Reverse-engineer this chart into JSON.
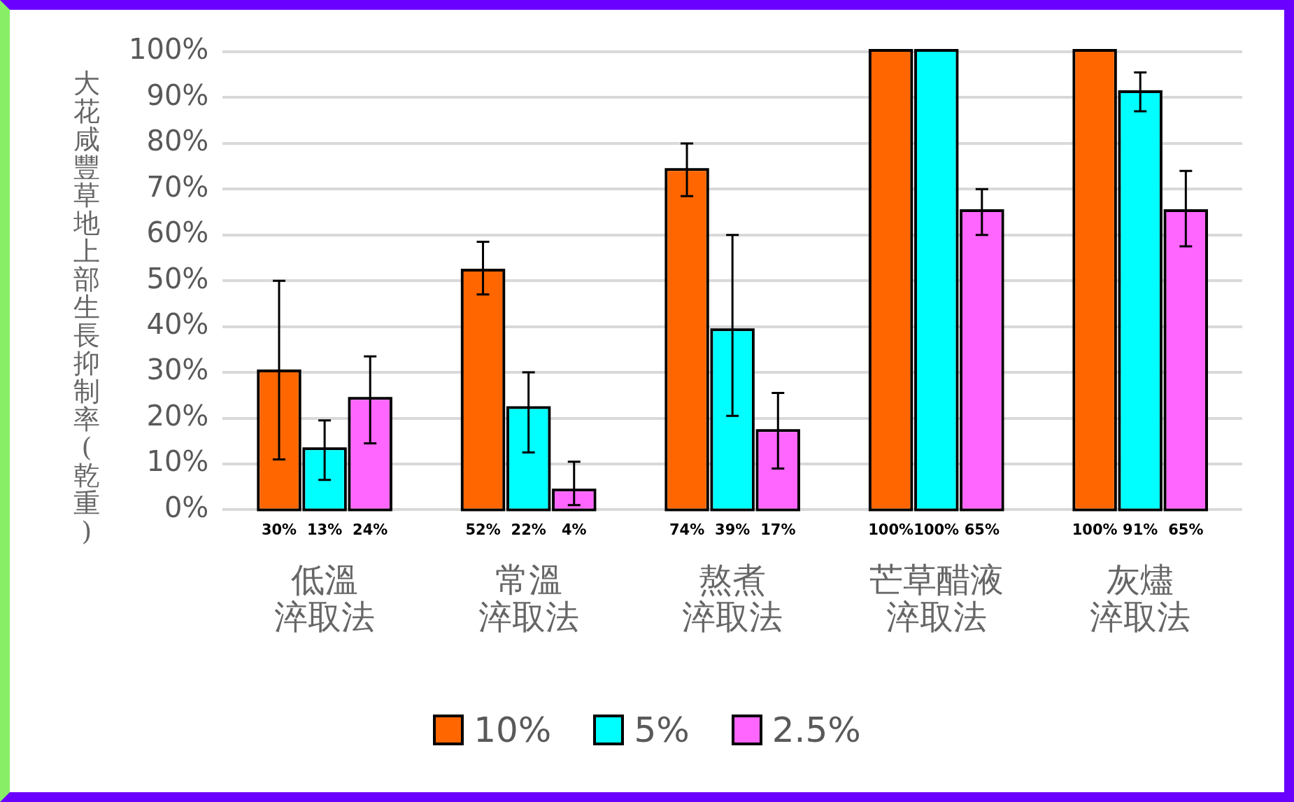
{
  "chart_data": {
    "type": "bar",
    "ylabel": "大花咸豐草地上部生長抑制率(乾重)",
    "categories": [
      "低溫淬取法",
      "常溫淬取法",
      "熬煮淬取法",
      "芒草醋液淬取法",
      "灰燼淬取法"
    ],
    "series": [
      {
        "name": "10%",
        "color": "#ff6600",
        "values": [
          30,
          52,
          74,
          100,
          100
        ],
        "errors": [
          [
            11,
            50
          ],
          [
            47,
            58.5
          ],
          [
            68.5,
            80
          ],
          null,
          null
        ],
        "value_labels": [
          "30%",
          "52%",
          "74%",
          "100%",
          "100%"
        ]
      },
      {
        "name": "5%",
        "color": "#00ffff",
        "values": [
          13,
          22,
          39,
          100,
          91
        ],
        "errors": [
          [
            6.5,
            19.5
          ],
          [
            12.5,
            30
          ],
          [
            20.5,
            60
          ],
          null,
          [
            87,
            95.5
          ]
        ],
        "value_labels": [
          "13%",
          "22%",
          "39%",
          "100%",
          "91%"
        ]
      },
      {
        "name": "2.5%",
        "color": "#ff66ff",
        "values": [
          24,
          4,
          17,
          65,
          65
        ],
        "errors": [
          [
            14.5,
            33.5
          ],
          [
            1,
            10.5
          ],
          [
            9,
            25.5
          ],
          [
            60,
            70
          ],
          [
            57.5,
            74
          ]
        ],
        "value_labels": [
          "24%",
          "4%",
          "17%",
          "65%",
          "65%"
        ]
      }
    ],
    "ylim": [
      0,
      100
    ],
    "yticks": [
      {
        "value": 0,
        "label": "0%"
      },
      {
        "value": 10,
        "label": "10%"
      },
      {
        "value": 20,
        "label": "20%"
      },
      {
        "value": 30,
        "label": "30%"
      },
      {
        "value": 40,
        "label": "40%"
      },
      {
        "value": 50,
        "label": "50%"
      },
      {
        "value": 60,
        "label": "60%"
      },
      {
        "value": 70,
        "label": "70%"
      },
      {
        "value": 80,
        "label": "80%"
      },
      {
        "value": 90,
        "label": "90%"
      },
      {
        "value": 100,
        "label": "100%"
      }
    ],
    "grid": "y",
    "legend": "bottom"
  }
}
